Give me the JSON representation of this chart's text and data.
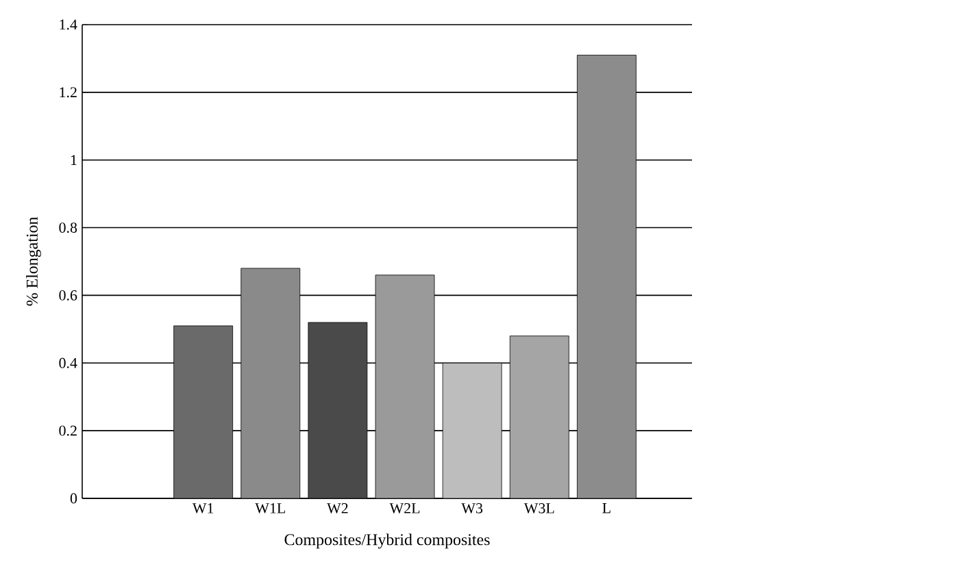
{
  "chart_data": {
    "type": "bar",
    "categories": [
      "W1",
      "W1L",
      "W2",
      "W2L",
      "W3",
      "W3L",
      "L"
    ],
    "values": [
      0.51,
      0.68,
      0.52,
      0.66,
      0.4,
      0.48,
      1.31
    ],
    "colors": [
      "#6a6a6a",
      "#8a8a8a",
      "#4a4a4a",
      "#9a9a9a",
      "#bdbdbd",
      "#a5a5a5",
      "#8c8c8c"
    ],
    "xlabel": "Composites/Hybrid composites",
    "ylabel": "% Elongation",
    "ylim": [
      0,
      1.4
    ],
    "yticks": [
      0,
      0.2,
      0.4,
      0.6,
      0.8,
      1,
      1.2,
      1.4
    ],
    "grid": "y"
  }
}
